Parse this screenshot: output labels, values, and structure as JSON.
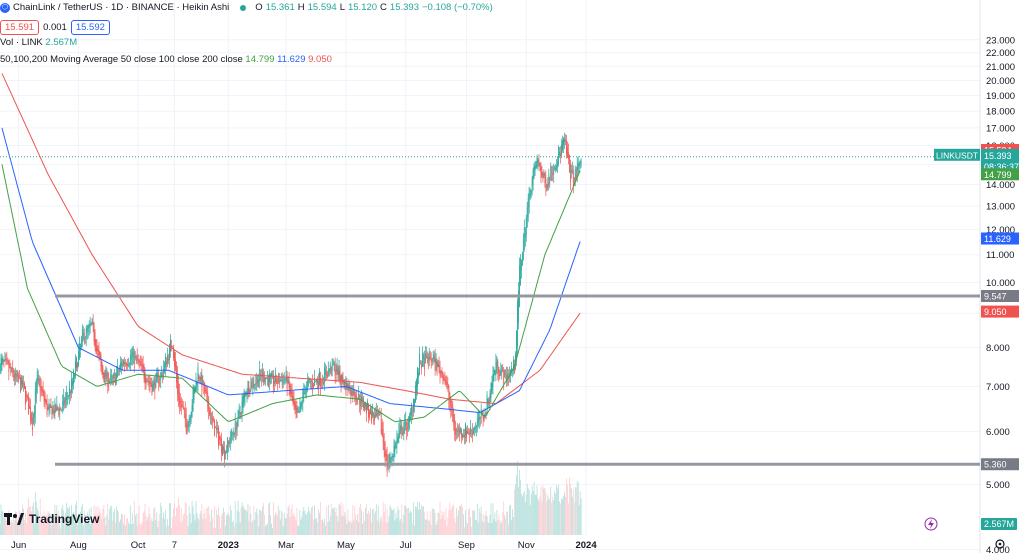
{
  "header": {
    "symbol_title": "ChainLink / TetherUS · 1D · BINANCE · Heikin Ashi",
    "o_label": "O",
    "o_value": "15.361",
    "h_label": "H",
    "h_value": "15.594",
    "l_label": "L",
    "l_value": "15.120",
    "c_label": "C",
    "c_value": "15.393",
    "change": "−0.108 (−0.70%)",
    "sell_price": "15.591",
    "spread": "0.001",
    "buy_price": "15.592",
    "vol_label": "Vol · LINK",
    "vol_value": "2.567M",
    "ma_label": "50,100,200 Moving Average 50 close 100 close 200 close",
    "ma50_value": "14.799",
    "ma100_value": "11.629",
    "ma200_value": "9.050"
  },
  "logo_text": "TradingView",
  "colors": {
    "up": "#26a69a",
    "down": "#ef5350",
    "ma50": "#43a047",
    "ma100": "#2962ff",
    "ma200": "#ef5350",
    "hline": "#787b86"
  },
  "chart_data": {
    "type": "candlestick",
    "y_axis": {
      "scale": "log",
      "ticks": [
        "4.000",
        "5.000",
        "6.000",
        "7.000",
        "8.000",
        "9.000",
        "10.000",
        "11.000",
        "12.000",
        "13.000",
        "14.000",
        "15.000",
        "16.000",
        "17.000",
        "18.000",
        "19.000",
        "20.000",
        "21.000",
        "22.000",
        "23.000"
      ]
    },
    "x_axis": {
      "ticks": [
        "Jun",
        "Aug",
        "Oct",
        "7",
        "2023",
        "Mar",
        "May",
        "Jul",
        "Sep",
        "Nov",
        "2024"
      ]
    },
    "price_close_points": [
      [
        "2022-05-15",
        7.6
      ],
      [
        "2022-05-25",
        7.3
      ],
      [
        "2022-06-05",
        7.0
      ],
      [
        "2022-06-15",
        6.2
      ],
      [
        "2022-06-20",
        7.2
      ],
      [
        "2022-07-01",
        6.4
      ],
      [
        "2022-07-15",
        6.5
      ],
      [
        "2022-07-25",
        7.0
      ],
      [
        "2022-08-05",
        8.3
      ],
      [
        "2022-08-15",
        8.6
      ],
      [
        "2022-08-25",
        7.3
      ],
      [
        "2022-09-05",
        7.1
      ],
      [
        "2022-09-15",
        7.6
      ],
      [
        "2022-09-25",
        7.8
      ],
      [
        "2022-10-05",
        7.4
      ],
      [
        "2022-10-15",
        7.0
      ],
      [
        "2022-10-25",
        7.3
      ],
      [
        "2022-11-05",
        8.2
      ],
      [
        "2022-11-10",
        6.8
      ],
      [
        "2022-11-20",
        6.1
      ],
      [
        "2022-12-01",
        7.4
      ],
      [
        "2022-12-15",
        6.2
      ],
      [
        "2022-12-28",
        5.6
      ],
      [
        "2023-01-10",
        6.2
      ],
      [
        "2023-01-20",
        7.0
      ],
      [
        "2023-02-05",
        7.3
      ],
      [
        "2023-02-15",
        7.1
      ],
      [
        "2023-03-01",
        7.2
      ],
      [
        "2023-03-12",
        6.2
      ],
      [
        "2023-03-20",
        7.0
      ],
      [
        "2023-04-05",
        7.2
      ],
      [
        "2023-04-18",
        7.5
      ],
      [
        "2023-05-01",
        7.0
      ],
      [
        "2023-05-12",
        6.8
      ],
      [
        "2023-05-25",
        6.4
      ],
      [
        "2023-06-05",
        6.2
      ],
      [
        "2023-06-12",
        5.3
      ],
      [
        "2023-06-25",
        6.0
      ],
      [
        "2023-07-05",
        6.2
      ],
      [
        "2023-07-15",
        7.6
      ],
      [
        "2023-07-28",
        7.7
      ],
      [
        "2023-08-10",
        7.2
      ],
      [
        "2023-08-20",
        6.0
      ],
      [
        "2023-09-05",
        6.0
      ],
      [
        "2023-09-20",
        6.4
      ],
      [
        "2023-10-01",
        7.6
      ],
      [
        "2023-10-10",
        7.2
      ],
      [
        "2023-10-20",
        7.5
      ],
      [
        "2023-10-25",
        10.4
      ],
      [
        "2023-11-05",
        13.9
      ],
      [
        "2023-11-12",
        15.2
      ],
      [
        "2023-11-20",
        14.0
      ],
      [
        "2023-12-01",
        15.2
      ],
      [
        "2023-12-10",
        16.2
      ],
      [
        "2023-12-15",
        14.6
      ],
      [
        "2023-12-20",
        14.2
      ],
      [
        "2023-12-27",
        15.393
      ]
    ],
    "ma50_points": [
      [
        "2022-05-15",
        15.0
      ],
      [
        "2022-06-10",
        9.8
      ],
      [
        "2022-07-15",
        7.5
      ],
      [
        "2022-08-20",
        7.0
      ],
      [
        "2022-10-01",
        7.3
      ],
      [
        "2022-11-15",
        7.2
      ],
      [
        "2023-01-01",
        6.2
      ],
      [
        "2023-02-15",
        6.6
      ],
      [
        "2023-04-01",
        6.8
      ],
      [
        "2023-05-15",
        6.7
      ],
      [
        "2023-06-20",
        6.2
      ],
      [
        "2023-07-20",
        6.3
      ],
      [
        "2023-08-25",
        6.9
      ],
      [
        "2023-09-20",
        6.3
      ],
      [
        "2023-10-20",
        7.5
      ],
      [
        "2023-11-20",
        11.0
      ],
      [
        "2023-12-27",
        14.799
      ]
    ],
    "ma100_points": [
      [
        "2022-05-15",
        17.0
      ],
      [
        "2022-06-15",
        11.5
      ],
      [
        "2022-08-01",
        8.0
      ],
      [
        "2022-09-15",
        7.4
      ],
      [
        "2022-11-01",
        7.4
      ],
      [
        "2023-01-01",
        6.8
      ],
      [
        "2023-03-01",
        6.9
      ],
      [
        "2023-05-01",
        7.0
      ],
      [
        "2023-06-15",
        6.6
      ],
      [
        "2023-08-01",
        6.5
      ],
      [
        "2023-09-15",
        6.4
      ],
      [
        "2023-10-25",
        6.9
      ],
      [
        "2023-11-25",
        8.5
      ],
      [
        "2023-12-27",
        11.629
      ]
    ],
    "ma200_points": [
      [
        "2022-05-15",
        20.5
      ],
      [
        "2022-07-01",
        14.5
      ],
      [
        "2022-08-15",
        11.0
      ],
      [
        "2022-10-01",
        8.6
      ],
      [
        "2022-11-15",
        7.8
      ],
      [
        "2023-01-15",
        7.3
      ],
      [
        "2023-03-15",
        7.2
      ],
      [
        "2023-05-15",
        7.1
      ],
      [
        "2023-07-01",
        6.9
      ],
      [
        "2023-08-15",
        6.7
      ],
      [
        "2023-10-01",
        6.6
      ],
      [
        "2023-11-15",
        7.4
      ],
      [
        "2023-12-27",
        9.05
      ]
    ],
    "horizontal_levels": [
      {
        "value": 9.547,
        "label": "9.547"
      },
      {
        "value": 5.36,
        "label": "5.360"
      }
    ],
    "axis_labels": [
      {
        "value": 15.594,
        "text": "15.594",
        "color": "#ef5350"
      },
      {
        "value": 15.393,
        "text": "LINKUSDT",
        "color": "#26a69a",
        "pair_text": "15.393",
        "sub_text": "08:36:37"
      },
      {
        "value": 14.799,
        "text": "14.799",
        "color": "#43a047"
      },
      {
        "value": 11.629,
        "text": "11.629",
        "color": "#2962ff"
      },
      {
        "value": 9.547,
        "text": "9.547",
        "color": "#787b86"
      },
      {
        "value": 9.05,
        "text": "9.050",
        "color": "#ef5350"
      },
      {
        "value": 5.36,
        "text": "5.360",
        "color": "#787b86"
      },
      {
        "value": 2.567,
        "text": "2.567M",
        "color": "#26a69a",
        "volume": true
      }
    ]
  }
}
